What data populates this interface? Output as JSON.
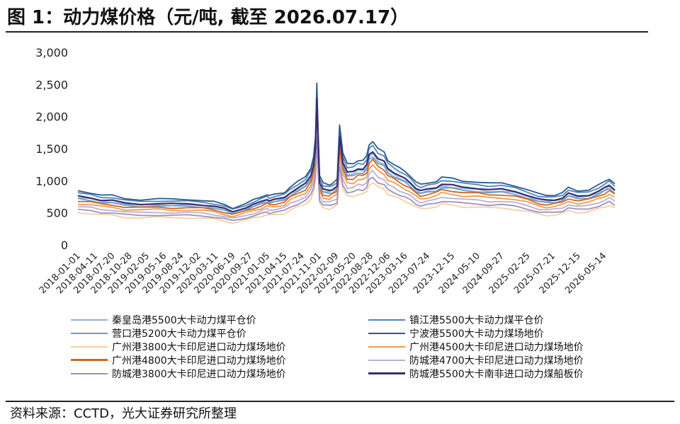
{
  "title": "图 1：动力煤价格（元/吨, 截至 2026.07.17）",
  "source": "资料来源：CCTD，光大证券研究所整理",
  "chart_data": {
    "type": "line",
    "ylim": [
      0,
      3000
    ],
    "yticks": [
      "0",
      "500",
      "1,000",
      "1,500",
      "2,000",
      "2,500",
      "3,000"
    ],
    "ytick_values": [
      0,
      500,
      1000,
      1500,
      2000,
      2500,
      3000
    ],
    "x_tick_labels": [
      "2018-01-01",
      "2018-04-11",
      "2018-07-20",
      "2018-10-28",
      "2019-02-05",
      "2019-05-16",
      "2019-08-24",
      "2019-12-02",
      "2020-03-11",
      "2020-06-19",
      "2020-09-27",
      "2021-01-05",
      "2021-04-15",
      "2021-07-24",
      "2021-11-01",
      "2022-02-09",
      "2022-05-20",
      "2022-08-28",
      "2022-12-06",
      "2023-03-16",
      "2023-07-24",
      "2023-12-15",
      "2024-05-10",
      "2024-09-27",
      "2025-02-25",
      "2025-07-21",
      "2025-12-15",
      "2026-05-14"
    ],
    "x_range": [
      "2018-01-01",
      "2026-07-17"
    ],
    "legend_position": "bottom",
    "grid": false,
    "series": [
      {
        "name": "秦皇岛港5500大卡动力煤平仓价",
        "color": "#8db6dc",
        "legend_col": 0
      },
      {
        "name": "镇江港5500大卡动力煤平仓价",
        "color": "#4a86bd",
        "legend_col": 1
      },
      {
        "name": "营口港5200大卡动力煤平仓价",
        "color": "#6a9fc8",
        "legend_col": 0
      },
      {
        "name": "宁波港5500大卡动力煤场地价",
        "color": "#2c5a8f",
        "legend_col": 1
      },
      {
        "name": "广州港3800大卡印尼进口动力煤场地价",
        "color": "#f6cfa2",
        "legend_col": 0
      },
      {
        "name": "广州港4500大卡印尼进口动力煤场地价",
        "color": "#ee9c4c",
        "legend_col": 1
      },
      {
        "name": "广州港4800大卡印尼进口动力煤场地价",
        "color": "#d0661c",
        "legend_col": 0
      },
      {
        "name": "防城港4700大卡印尼进口动力煤场地价",
        "color": "#b9afd6",
        "legend_col": 1
      },
      {
        "name": "防城港3800大卡印尼进口动力煤场地价",
        "color": "#9d90c2",
        "legend_col": 0
      },
      {
        "name": "防城港5500大卡南非进口动力煤船板价",
        "color": "#3b2d6e",
        "legend_col": 1
      }
    ],
    "base_curve": {
      "dates": [
        "2018-01-01",
        "2018-03-15",
        "2018-05-15",
        "2018-07-20",
        "2018-10-01",
        "2018-12-31",
        "2019-04-15",
        "2019-07-01",
        "2019-10-01",
        "2019-12-31",
        "2020-03-01",
        "2020-05-01",
        "2020-06-19",
        "2020-09-01",
        "2020-10-15",
        "2020-12-01",
        "2021-01-05",
        "2021-01-15",
        "2021-02-15",
        "2021-04-15",
        "2021-05-20",
        "2021-06-30",
        "2021-08-15",
        "2021-09-15",
        "2021-10-01",
        "2021-10-12",
        "2021-10-20",
        "2021-10-28",
        "2021-11-05",
        "2021-11-25",
        "2021-12-31",
        "2022-01-15",
        "2022-02-15",
        "2022-03-01",
        "2022-03-10",
        "2022-03-20",
        "2022-04-15",
        "2022-05-20",
        "2022-06-15",
        "2022-07-15",
        "2022-08-05",
        "2022-08-20",
        "2022-09-10",
        "2022-10-10",
        "2022-11-15",
        "2022-12-06",
        "2023-01-10",
        "2023-02-10",
        "2023-03-16",
        "2023-04-15",
        "2023-05-20",
        "2023-06-15",
        "2023-07-24",
        "2023-09-15",
        "2023-10-15",
        "2023-12-15",
        "2024-02-15",
        "2024-05-10",
        "2024-07-15",
        "2024-09-27",
        "2024-12-15",
        "2025-02-25",
        "2025-05-01",
        "2025-06-15",
        "2025-08-01",
        "2025-09-15",
        "2025-10-20",
        "2025-12-15",
        "2026-02-15",
        "2026-04-15",
        "2026-05-20",
        "2026-06-15",
        "2026-07-17"
      ],
      "values": [
        700,
        680,
        650,
        640,
        600,
        590,
        600,
        590,
        590,
        580,
        560,
        520,
        480,
        540,
        580,
        620,
        660,
        640,
        650,
        680,
        760,
        820,
        880,
        1000,
        1150,
        1400,
        2100,
        1450,
        900,
        800,
        780,
        800,
        850,
        1550,
        1400,
        1200,
        1050,
        1050,
        1100,
        1100,
        1150,
        1300,
        1350,
        1250,
        1200,
        1100,
        1050,
        1000,
        950,
        900,
        820,
        780,
        800,
        830,
        880,
        860,
        830,
        820,
        800,
        800,
        770,
        720,
        660,
        640,
        650,
        680,
        740,
        700,
        720,
        780,
        820,
        860,
        800
      ]
    },
    "series_scale": [
      1.05,
      1.15,
      1.02,
      1.2,
      0.72,
      0.92,
      0.98,
      0.85,
      0.78,
      1.08
    ]
  }
}
